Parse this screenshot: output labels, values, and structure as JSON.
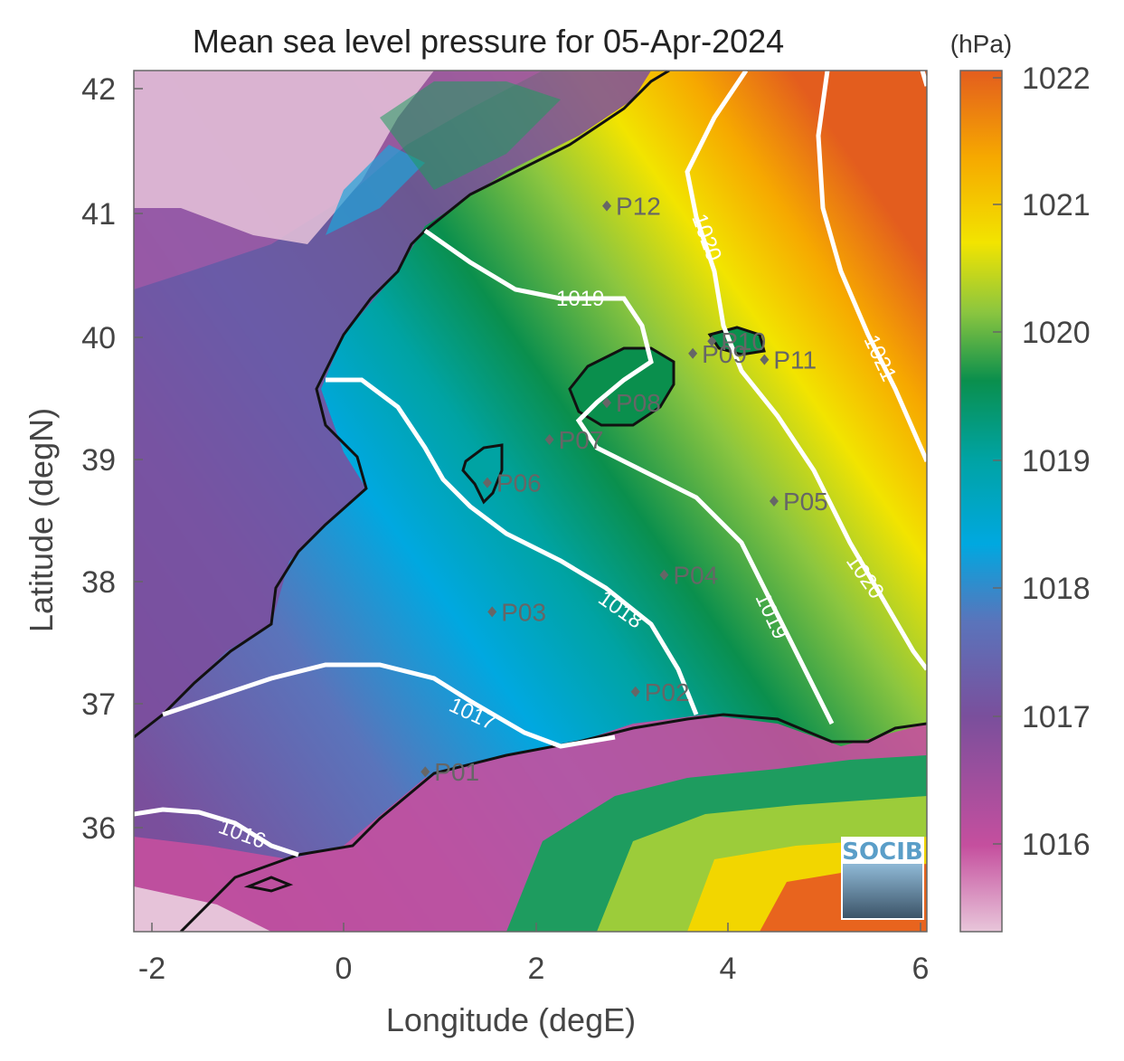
{
  "title": "Mean sea level pressure for 05-Apr-2024",
  "xlabel": "Longitude (degE)",
  "ylabel": "Latitude (degN)",
  "x_ticks": [
    "-2",
    "0",
    "2",
    "4",
    "6"
  ],
  "y_ticks": [
    "42",
    "41",
    "40",
    "39",
    "38",
    "37",
    "36"
  ],
  "colorbar": {
    "unit": "(hPa)",
    "ticks": [
      "1022",
      "1021",
      "1020",
      "1019",
      "1018",
      "1017",
      "1016"
    ],
    "colormap": [
      "#e8c6da",
      "#c54f9e",
      "#7a4f9c",
      "#5a74bb",
      "#00a8e0",
      "#00a3a3",
      "#0a8f4d",
      "#8cc63f",
      "#f2e400",
      "#f6a800",
      "#e35d1e"
    ]
  },
  "contour_labels": [
    "1016",
    "1017",
    "1018",
    "1019",
    "1019",
    "1020",
    "1020",
    "1021"
  ],
  "stations": [
    "P01",
    "P02",
    "P03",
    "P04",
    "P05",
    "P06",
    "P07",
    "P08",
    "P09",
    "P10",
    "P11",
    "P12"
  ],
  "logo_text": "SOCIB",
  "chart_data": {
    "type": "heatmap",
    "variable": "Mean sea level pressure",
    "units": "hPa",
    "date": "05-Apr-2024",
    "xlim": [
      -2.2,
      6.1
    ],
    "ylim": [
      35.2,
      42.2
    ],
    "clim": [
      1015.3,
      1022.2
    ],
    "contour_levels": [
      1016,
      1017,
      1018,
      1019,
      1020,
      1021
    ],
    "stations": [
      {
        "name": "P01",
        "lon": 0.85,
        "lat": 36.5
      },
      {
        "name": "P02",
        "lon": 3.05,
        "lat": 37.15
      },
      {
        "name": "P03",
        "lon": 1.55,
        "lat": 37.8
      },
      {
        "name": "P04",
        "lon": 3.35,
        "lat": 38.1
      },
      {
        "name": "P05",
        "lon": 4.5,
        "lat": 38.7
      },
      {
        "name": "P06",
        "lon": 1.5,
        "lat": 38.85
      },
      {
        "name": "P07",
        "lon": 2.15,
        "lat": 39.2
      },
      {
        "name": "P08",
        "lon": 2.75,
        "lat": 39.5
      },
      {
        "name": "P09",
        "lon": 3.65,
        "lat": 39.9
      },
      {
        "name": "P10",
        "lon": 3.85,
        "lat": 40.0
      },
      {
        "name": "P11",
        "lon": 4.4,
        "lat": 39.85
      },
      {
        "name": "P12",
        "lon": 2.75,
        "lat": 41.1
      }
    ]
  }
}
